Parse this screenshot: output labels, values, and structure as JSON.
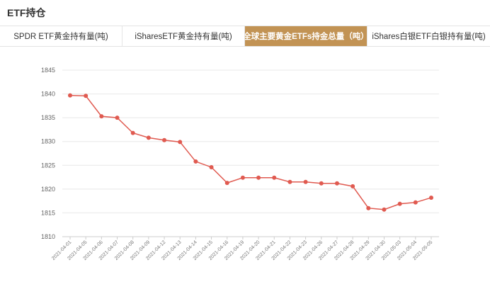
{
  "header": {
    "title": "ETF持仓"
  },
  "tabs": [
    {
      "label": "SPDR ETF黄金持有量(吨)",
      "active": false
    },
    {
      "label": "iSharesETF黄金持有量(吨)",
      "active": false
    },
    {
      "label": "全球主要黄金ETFs持金总量（吨）",
      "active": true
    },
    {
      "label": "iShares白银ETF白银持有量(吨)",
      "active": false
    }
  ],
  "colors": {
    "accent": "#c29354",
    "line": "#e05a50",
    "grid": "#e8e8e8"
  },
  "chart_data": {
    "type": "line",
    "x": [
      "2021-04-01",
      "2021-04-05",
      "2021-04-06",
      "2021-04-07",
      "2021-04-08",
      "2021-04-09",
      "2021-04-12",
      "2021-04-13",
      "2021-04-14",
      "2021-04-15",
      "2021-04-16",
      "2021-04-19",
      "2021-04-20",
      "2021-04-21",
      "2021-04-22",
      "2021-04-23",
      "2021-04-26",
      "2021-04-27",
      "2021-04-28",
      "2021-04-29",
      "2021-04-30",
      "2021-05-03",
      "2021-05-04",
      "2021-05-05"
    ],
    "series": [
      {
        "values": [
          1839.7,
          1839.6,
          1835.3,
          1835.0,
          1831.8,
          1830.8,
          1830.3,
          1829.9,
          1825.8,
          1824.6,
          1821.3,
          1822.4,
          1822.4,
          1822.4,
          1821.5,
          1821.5,
          1821.2,
          1821.2,
          1820.6,
          1816.0,
          1815.7,
          1816.9,
          1817.2,
          1818.2
        ]
      }
    ],
    "yticks": [
      1810,
      1815,
      1820,
      1825,
      1830,
      1835,
      1840,
      1845
    ],
    "ylim": [
      1810,
      1845
    ],
    "grid": true,
    "legend": "none"
  }
}
